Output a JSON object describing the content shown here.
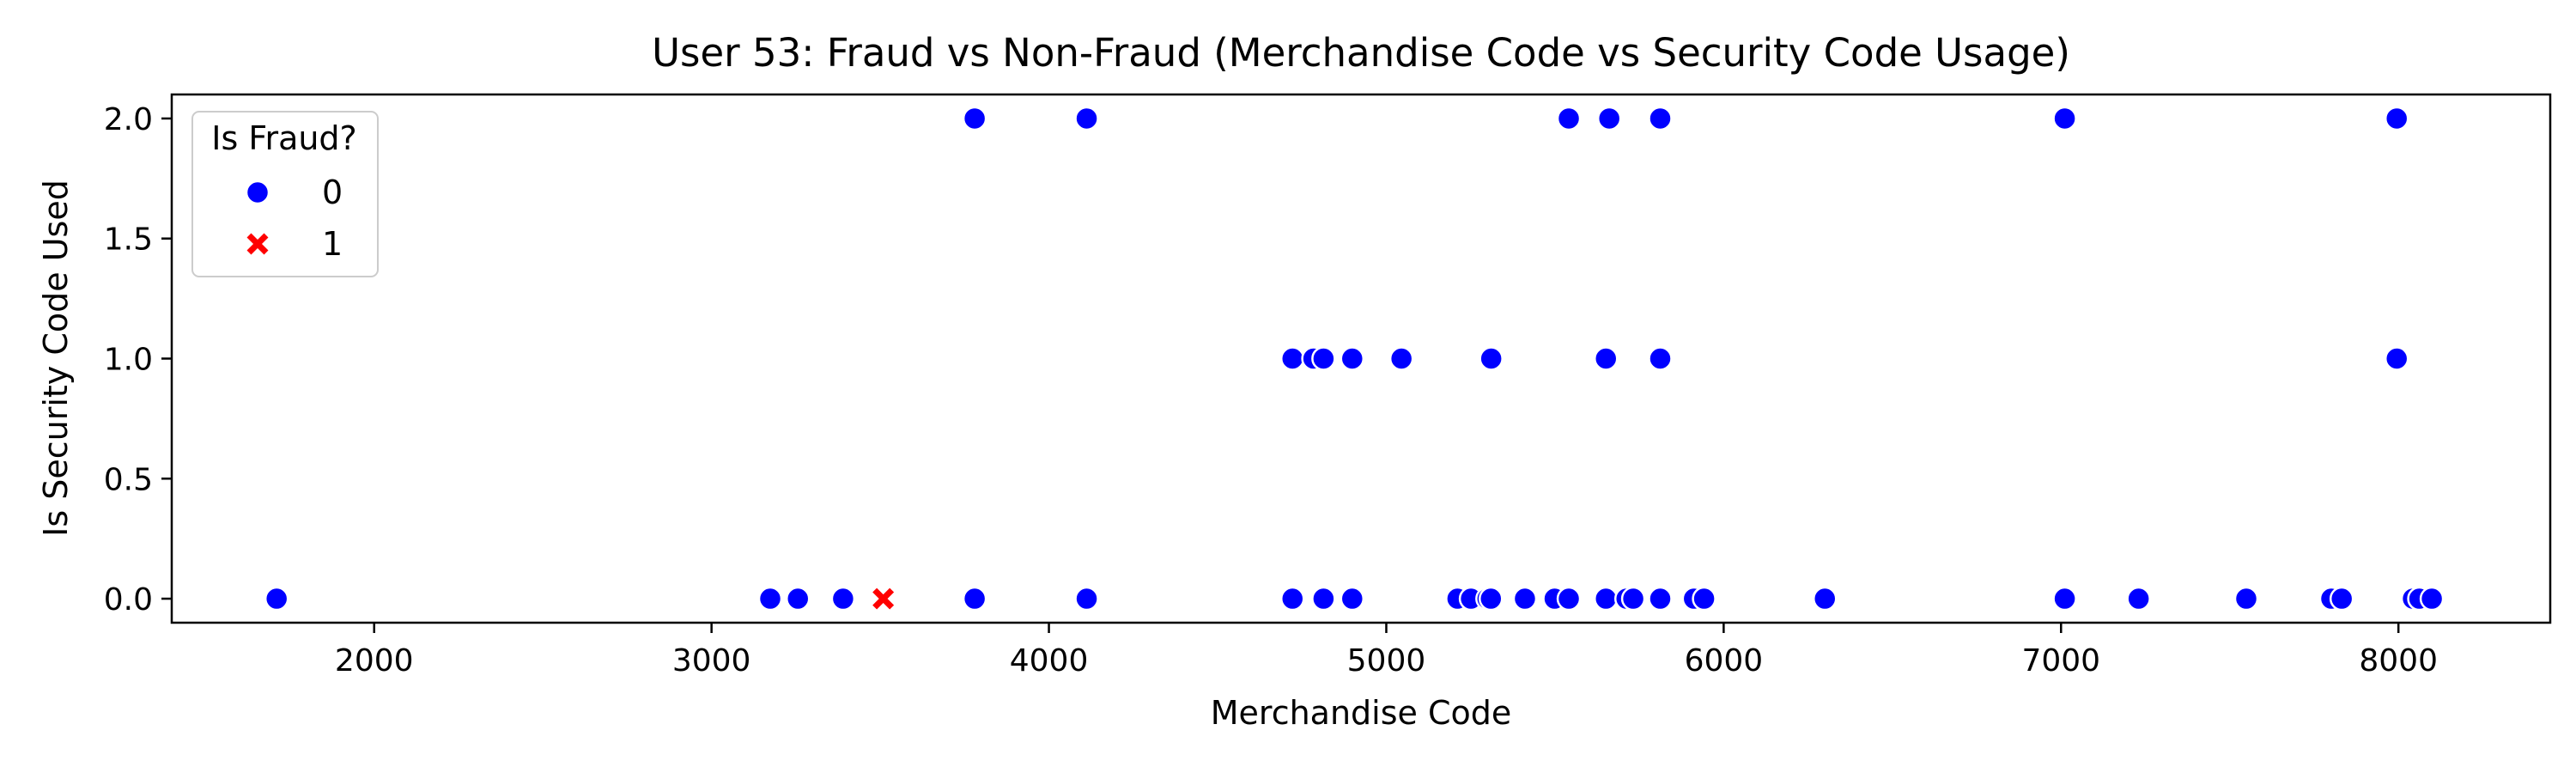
{
  "chart_data": {
    "type": "scatter",
    "title": "User 53: Fraud vs Non-Fraud (Merchandise Code vs Security Code Usage)",
    "xlabel": "Merchandise Code",
    "ylabel": "Is Security Code Used",
    "xlim": [
      1400,
      8450
    ],
    "ylim": [
      -0.1,
      2.1
    ],
    "x_ticks": [
      2000,
      3000,
      4000,
      5000,
      6000,
      7000,
      8000
    ],
    "x_tick_labels": [
      "2000",
      "3000",
      "4000",
      "5000",
      "6000",
      "7000",
      "8000"
    ],
    "y_ticks": [
      0.0,
      0.5,
      1.0,
      1.5,
      2.0
    ],
    "y_tick_labels": [
      "0.0",
      "0.5",
      "1.0",
      "1.5",
      "2.0"
    ],
    "grid": false,
    "legend": {
      "title": "Is Fraud?",
      "placement": "top-left",
      "entries": [
        {
          "label": "0",
          "marker": "circle",
          "color": "#0000ff"
        },
        {
          "label": "1",
          "marker": "x",
          "color": "#ff0000"
        }
      ]
    },
    "series": [
      {
        "name": "0",
        "marker": "circle",
        "color": "#0000ff",
        "points": [
          {
            "x": 3780,
            "y": 2
          },
          {
            "x": 4112,
            "y": 2
          },
          {
            "x": 5541,
            "y": 2
          },
          {
            "x": 5661,
            "y": 2
          },
          {
            "x": 5812,
            "y": 2
          },
          {
            "x": 7011,
            "y": 2
          },
          {
            "x": 7995,
            "y": 2
          },
          {
            "x": 4722,
            "y": 1
          },
          {
            "x": 4784,
            "y": 1
          },
          {
            "x": 4814,
            "y": 1
          },
          {
            "x": 4899,
            "y": 1
          },
          {
            "x": 5045,
            "y": 1
          },
          {
            "x": 5311,
            "y": 1
          },
          {
            "x": 5651,
            "y": 1
          },
          {
            "x": 5812,
            "y": 1
          },
          {
            "x": 7995,
            "y": 1
          },
          {
            "x": 1711,
            "y": 0
          },
          {
            "x": 3174,
            "y": 0
          },
          {
            "x": 3256,
            "y": 0
          },
          {
            "x": 3390,
            "y": 0
          },
          {
            "x": 3780,
            "y": 0
          },
          {
            "x": 4112,
            "y": 0
          },
          {
            "x": 4722,
            "y": 0
          },
          {
            "x": 4814,
            "y": 0
          },
          {
            "x": 4899,
            "y": 0
          },
          {
            "x": 5211,
            "y": 0
          },
          {
            "x": 5251,
            "y": 0
          },
          {
            "x": 5300,
            "y": 0
          },
          {
            "x": 5310,
            "y": 0
          },
          {
            "x": 5411,
            "y": 0
          },
          {
            "x": 5499,
            "y": 0
          },
          {
            "x": 5541,
            "y": 0
          },
          {
            "x": 5651,
            "y": 0
          },
          {
            "x": 5712,
            "y": 0
          },
          {
            "x": 5732,
            "y": 0
          },
          {
            "x": 5812,
            "y": 0
          },
          {
            "x": 5912,
            "y": 0
          },
          {
            "x": 5942,
            "y": 0
          },
          {
            "x": 6300,
            "y": 0
          },
          {
            "x": 7011,
            "y": 0
          },
          {
            "x": 7230,
            "y": 0
          },
          {
            "x": 7549,
            "y": 0
          },
          {
            "x": 7801,
            "y": 0
          },
          {
            "x": 7832,
            "y": 0
          },
          {
            "x": 8043,
            "y": 0
          },
          {
            "x": 8062,
            "y": 0
          },
          {
            "x": 8099,
            "y": 0
          }
        ]
      },
      {
        "name": "1",
        "marker": "x",
        "color": "#ff0000",
        "points": [
          {
            "x": 3509,
            "y": 0
          }
        ]
      }
    ]
  }
}
